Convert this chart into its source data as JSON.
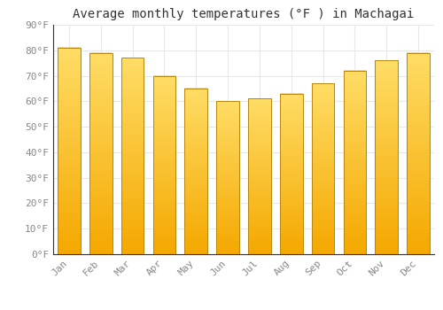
{
  "title": "Average monthly temperatures (°F ) in Machagai",
  "months": [
    "Jan",
    "Feb",
    "Mar",
    "Apr",
    "May",
    "Jun",
    "Jul",
    "Aug",
    "Sep",
    "Oct",
    "Nov",
    "Dec"
  ],
  "values": [
    81,
    79,
    77,
    70,
    65,
    60,
    61,
    63,
    67,
    72,
    76,
    79
  ],
  "bar_color_bottom": "#F5A800",
  "bar_color_top": "#FFD966",
  "bar_edge_color": "#B8860B",
  "background_color": "#FFFFFF",
  "grid_color": "#E8E8E8",
  "ylim": [
    0,
    90
  ],
  "yticks": [
    0,
    10,
    20,
    30,
    40,
    50,
    60,
    70,
    80,
    90
  ],
  "ytick_labels": [
    "0°F",
    "10°F",
    "20°F",
    "30°F",
    "40°F",
    "50°F",
    "60°F",
    "70°F",
    "80°F",
    "90°F"
  ],
  "title_fontsize": 10,
  "tick_fontsize": 8,
  "tick_color": "#888888",
  "spine_color": "#333333"
}
